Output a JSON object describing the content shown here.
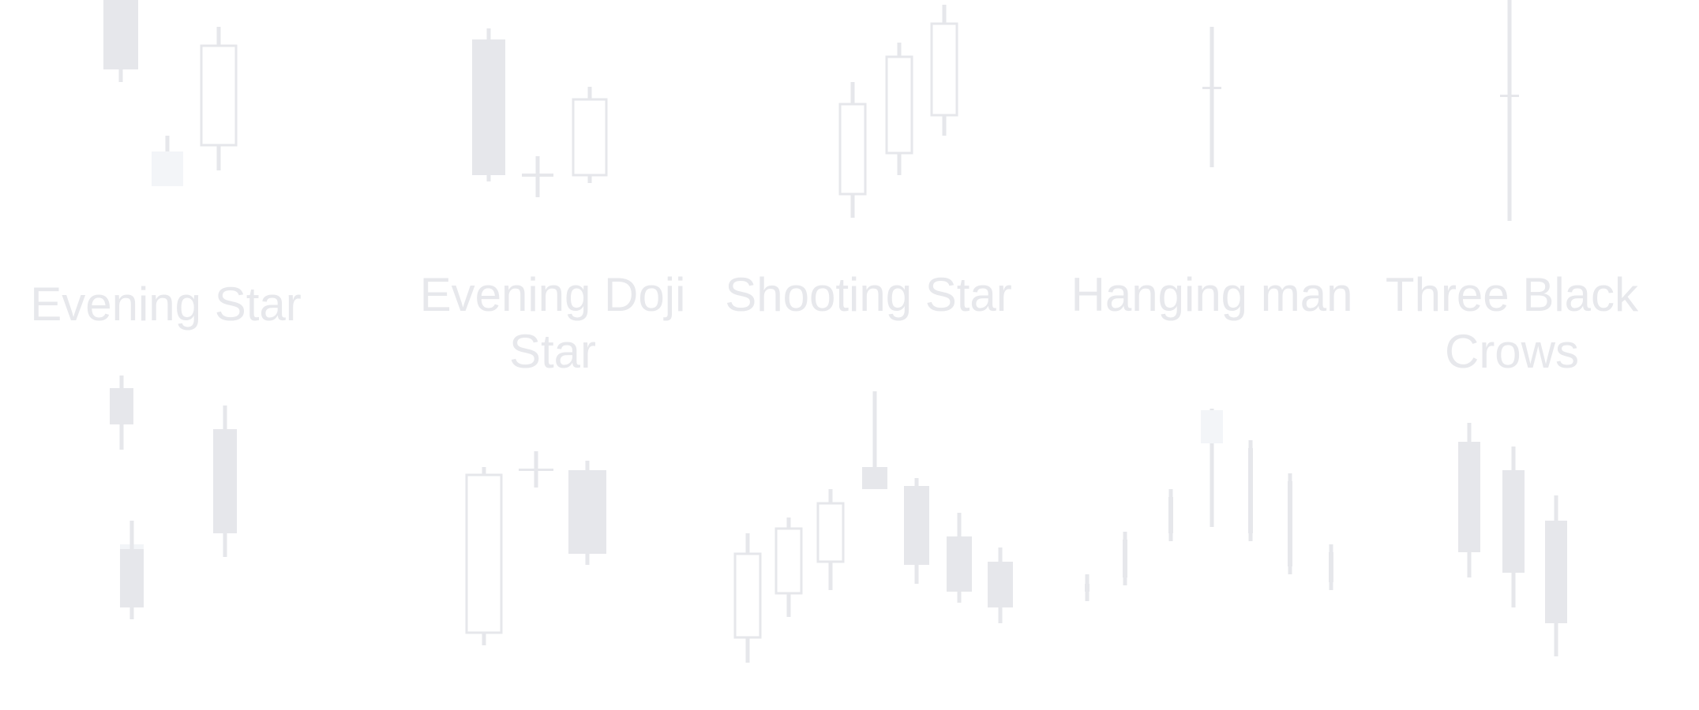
{
  "colors": {
    "bearish": "#e6e7eb",
    "bullish": "#ffffff",
    "outline": "#e6e7eb",
    "neutral": "#f3f5f8",
    "label": "#e7e8ec"
  },
  "labels": [
    {
      "id": "evening-star",
      "text": "Evening Star"
    },
    {
      "id": "evening-doji-star",
      "text": "Evening Doji Star"
    },
    {
      "id": "shooting-star",
      "text": "Shooting Star"
    },
    {
      "id": "hanging-man",
      "text": "Hanging man"
    },
    {
      "id": "three-black-crows",
      "text": "Three Black Crows"
    }
  ]
}
